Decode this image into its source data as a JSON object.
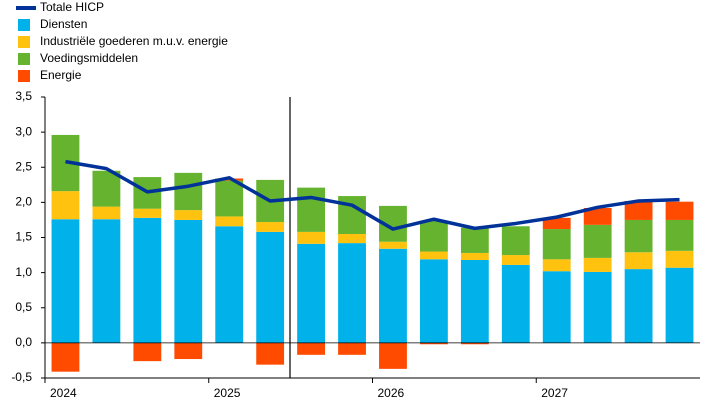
{
  "chart_data": {
    "type": "bar",
    "stacked": true,
    "categories": [
      "2024",
      null,
      null,
      null,
      "2025",
      null,
      null,
      null,
      "2026",
      null,
      null,
      null,
      "2027",
      null,
      null,
      null
    ],
    "series": [
      {
        "name": "Totale HICP",
        "type": "line",
        "color": "#003299",
        "values": [
          2.58,
          2.48,
          2.15,
          2.23,
          2.35,
          2.02,
          2.07,
          1.96,
          1.62,
          1.76,
          1.63,
          1.7,
          1.79,
          1.93,
          2.02,
          2.04
        ]
      },
      {
        "name": "Diensten",
        "color": "#00b1ea",
        "values": [
          1.76,
          1.76,
          1.78,
          1.75,
          1.66,
          1.58,
          1.41,
          1.42,
          1.34,
          1.19,
          1.18,
          1.11,
          1.02,
          1.01,
          1.05,
          1.07
        ]
      },
      {
        "name": "Industriële goederen m.u.v. energie",
        "color": "#ffc20e",
        "values": [
          0.4,
          0.18,
          0.13,
          0.14,
          0.14,
          0.14,
          0.17,
          0.13,
          0.1,
          0.11,
          0.1,
          0.14,
          0.17,
          0.2,
          0.24,
          0.24
        ]
      },
      {
        "name": "Voedingsmiddelen",
        "color": "#65b32e",
        "values": [
          0.8,
          0.51,
          0.45,
          0.53,
          0.51,
          0.6,
          0.63,
          0.54,
          0.51,
          0.44,
          0.36,
          0.41,
          0.43,
          0.47,
          0.46,
          0.44
        ]
      },
      {
        "name": "Energie",
        "color": "#ff4b00",
        "values": [
          -0.41,
          0.0,
          -0.26,
          -0.23,
          0.03,
          -0.31,
          -0.17,
          -0.17,
          -0.37,
          -0.02,
          -0.02,
          0.0,
          0.16,
          0.24,
          0.27,
          0.26
        ]
      }
    ],
    "ylim": [
      -0.5,
      3.5
    ],
    "yticks": [
      {
        "value": -0.5,
        "label": "-0,5"
      },
      {
        "value": 0,
        "label": "0,0"
      },
      {
        "value": 0.5,
        "label": "0,5"
      },
      {
        "value": 1,
        "label": "1,0"
      },
      {
        "value": 1.5,
        "label": "1,5"
      },
      {
        "value": 2,
        "label": "2,0"
      },
      {
        "value": 2.5,
        "label": "2,5"
      },
      {
        "value": 3,
        "label": "3,0"
      },
      {
        "value": 3.5,
        "label": "3,5"
      }
    ]
  }
}
